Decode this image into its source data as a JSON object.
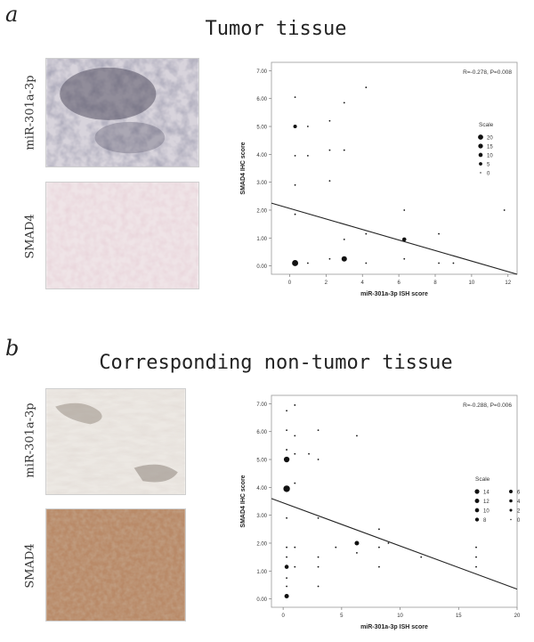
{
  "panel_a": {
    "letter": "a",
    "title": "Tumor tissue",
    "image_labels": {
      "top": "miR-301a-3p",
      "bottom": "SMAD4"
    }
  },
  "panel_b": {
    "letter": "b",
    "title": "Corresponding non-tumor tissue",
    "image_labels": {
      "top": "miR-301a-3p",
      "bottom": "SMAD4"
    }
  },
  "chart_data": [
    {
      "type": "scatter",
      "title": "",
      "xlabel": "miR-301a-3p ISH score",
      "ylabel": "SMAD4 IHC score",
      "annotation": "R=-0.278, P=0.008",
      "xlim": [
        -1,
        12.5
      ],
      "ylim": [
        -0.3,
        7.3
      ],
      "xticks": [
        "0",
        "2",
        "4",
        "6",
        "8",
        "10",
        "12"
      ],
      "yticks": [
        "0.00",
        "1.00",
        "2.00",
        "3.00",
        "4.00",
        "5.00",
        "6.00",
        "7.00"
      ],
      "legend_title": "Scale",
      "legend_labels": [
        "20",
        "15",
        "10",
        "5",
        "0"
      ],
      "points": [
        {
          "x": 0.3,
          "y": 6.05,
          "s": 1
        },
        {
          "x": 0.3,
          "y": 5.0,
          "s": 2
        },
        {
          "x": 0.3,
          "y": 3.95,
          "s": 1
        },
        {
          "x": 0.3,
          "y": 2.9,
          "s": 1
        },
        {
          "x": 0.3,
          "y": 1.85,
          "s": 1
        },
        {
          "x": 0.3,
          "y": 0.1,
          "s": 10
        },
        {
          "x": 1.0,
          "y": 5.0,
          "s": 1
        },
        {
          "x": 1.0,
          "y": 3.95,
          "s": 1
        },
        {
          "x": 1.0,
          "y": 0.1,
          "s": 1
        },
        {
          "x": 2.2,
          "y": 5.2,
          "s": 1
        },
        {
          "x": 2.2,
          "y": 4.15,
          "s": 1
        },
        {
          "x": 2.2,
          "y": 3.05,
          "s": 1
        },
        {
          "x": 2.2,
          "y": 0.25,
          "s": 1
        },
        {
          "x": 3.0,
          "y": 5.85,
          "s": 1
        },
        {
          "x": 3.0,
          "y": 4.15,
          "s": 1
        },
        {
          "x": 3.0,
          "y": 0.95,
          "s": 1
        },
        {
          "x": 3.0,
          "y": 0.25,
          "s": 7
        },
        {
          "x": 4.2,
          "y": 6.4,
          "s": 1
        },
        {
          "x": 4.2,
          "y": 1.15,
          "s": 1
        },
        {
          "x": 4.2,
          "y": 0.1,
          "s": 1
        },
        {
          "x": 6.3,
          "y": 2.0,
          "s": 1
        },
        {
          "x": 6.3,
          "y": 0.95,
          "s": 3
        },
        {
          "x": 6.3,
          "y": 0.25,
          "s": 1
        },
        {
          "x": 8.2,
          "y": 1.15,
          "s": 1
        },
        {
          "x": 8.2,
          "y": 0.1,
          "s": 1
        },
        {
          "x": 9.0,
          "y": 0.1,
          "s": 1
        },
        {
          "x": 11.8,
          "y": 2.0,
          "s": 1
        }
      ],
      "fit_line": [
        [
          -1,
          2.25
        ],
        [
          12.5,
          -0.3
        ]
      ]
    },
    {
      "type": "scatter",
      "title": "",
      "xlabel": "miR-301a-3p ISH score",
      "ylabel": "SMAD4 IHC score",
      "annotation": "R=-0.288, P=0.006",
      "xlim": [
        -1,
        20
      ],
      "ylim": [
        -0.3,
        7.3
      ],
      "xticks": [
        "0",
        "5",
        "10",
        "15",
        "20"
      ],
      "yticks": [
        "0.00",
        "1.00",
        "2.00",
        "3.00",
        "4.00",
        "5.00",
        "6.00",
        "7.00"
      ],
      "legend_title": "Scale",
      "legend_labels": [
        "14",
        "12",
        "10",
        "8",
        "6",
        "4",
        "2",
        "0"
      ],
      "points": [
        {
          "x": 0.3,
          "y": 6.75,
          "s": 1
        },
        {
          "x": 1.0,
          "y": 6.95,
          "s": 1
        },
        {
          "x": 0.3,
          "y": 6.05,
          "s": 1
        },
        {
          "x": 1.0,
          "y": 5.85,
          "s": 1
        },
        {
          "x": 0.3,
          "y": 5.35,
          "s": 1
        },
        {
          "x": 0.3,
          "y": 5.0,
          "s": 8
        },
        {
          "x": 1.0,
          "y": 5.2,
          "s": 1
        },
        {
          "x": 2.2,
          "y": 5.2,
          "s": 1
        },
        {
          "x": 3.0,
          "y": 6.05,
          "s": 1
        },
        {
          "x": 3.0,
          "y": 5.0,
          "s": 1
        },
        {
          "x": 6.3,
          "y": 5.85,
          "s": 1
        },
        {
          "x": 0.3,
          "y": 3.95,
          "s": 12
        },
        {
          "x": 1.0,
          "y": 4.15,
          "s": 1
        },
        {
          "x": 0.3,
          "y": 2.9,
          "s": 1
        },
        {
          "x": 3.0,
          "y": 2.9,
          "s": 1
        },
        {
          "x": 0.3,
          "y": 1.85,
          "s": 1
        },
        {
          "x": 0.3,
          "y": 1.5,
          "s": 1
        },
        {
          "x": 0.3,
          "y": 1.15,
          "s": 3
        },
        {
          "x": 0.3,
          "y": 0.75,
          "s": 1
        },
        {
          "x": 0.3,
          "y": 0.45,
          "s": 1
        },
        {
          "x": 0.3,
          "y": 0.1,
          "s": 4
        },
        {
          "x": 1.0,
          "y": 1.85,
          "s": 1
        },
        {
          "x": 1.0,
          "y": 1.15,
          "s": 1
        },
        {
          "x": 3.0,
          "y": 1.5,
          "s": 1
        },
        {
          "x": 3.0,
          "y": 1.15,
          "s": 1
        },
        {
          "x": 3.0,
          "y": 0.45,
          "s": 1
        },
        {
          "x": 4.5,
          "y": 1.85,
          "s": 1
        },
        {
          "x": 6.3,
          "y": 2.0,
          "s": 4
        },
        {
          "x": 6.3,
          "y": 1.65,
          "s": 1
        },
        {
          "x": 8.2,
          "y": 2.5,
          "s": 1
        },
        {
          "x": 8.2,
          "y": 1.85,
          "s": 1
        },
        {
          "x": 8.2,
          "y": 1.15,
          "s": 1
        },
        {
          "x": 9.0,
          "y": 2.0,
          "s": 1
        },
        {
          "x": 11.8,
          "y": 1.5,
          "s": 1
        },
        {
          "x": 16.5,
          "y": 1.85,
          "s": 1
        },
        {
          "x": 16.5,
          "y": 1.5,
          "s": 1
        },
        {
          "x": 16.5,
          "y": 1.15,
          "s": 1
        }
      ],
      "fit_line": [
        [
          -1,
          3.6
        ],
        [
          20,
          0.35
        ]
      ]
    }
  ]
}
